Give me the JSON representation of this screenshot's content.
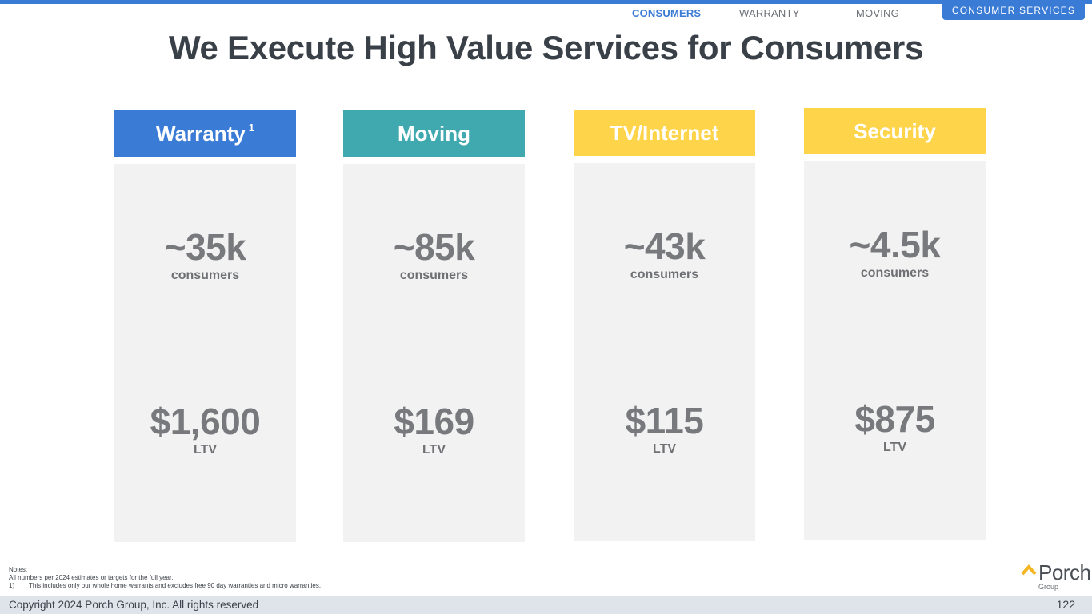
{
  "nav": {
    "consumers": "CONSUMERS",
    "warranty": "WARRANTY",
    "moving": "MOVING",
    "section": "CONSUMER SERVICES"
  },
  "title": "We Execute High Value Services for Consumers",
  "cards": [
    {
      "name": "Warranty",
      "footnote": "1",
      "color": "#3a7bd5",
      "consumers": "~35k",
      "consumers_label": "consumers",
      "ltv": "$1,600",
      "ltv_label": "LTV"
    },
    {
      "name": "Moving",
      "color": "#40a9b0",
      "consumers": "~85k",
      "consumers_label": "consumers",
      "ltv": "$169",
      "ltv_label": "LTV"
    },
    {
      "name": "TV/Internet",
      "color": "#fed44a",
      "consumers": "~43k",
      "consumers_label": "consumers",
      "ltv": "$115",
      "ltv_label": "LTV"
    },
    {
      "name": "Security",
      "color": "#fed44a",
      "consumers": "~4.5k",
      "consumers_label": "consumers",
      "ltv": "$875",
      "ltv_label": "LTV"
    }
  ],
  "notes": {
    "heading": "Notes:",
    "line1": "All numbers per 2024 estimates or targets for the full year.",
    "footnote_num": "1)",
    "footnote_text": "This includes only our whole home warrants and excludes free 90 day warranties and micro warranties."
  },
  "logo": {
    "word": "Porch",
    "sub": "Group",
    "accent": "#f5b623"
  },
  "footer": {
    "copyright": "Copyright 2024 Porch Group, Inc. All rights reserved",
    "page": "122"
  }
}
